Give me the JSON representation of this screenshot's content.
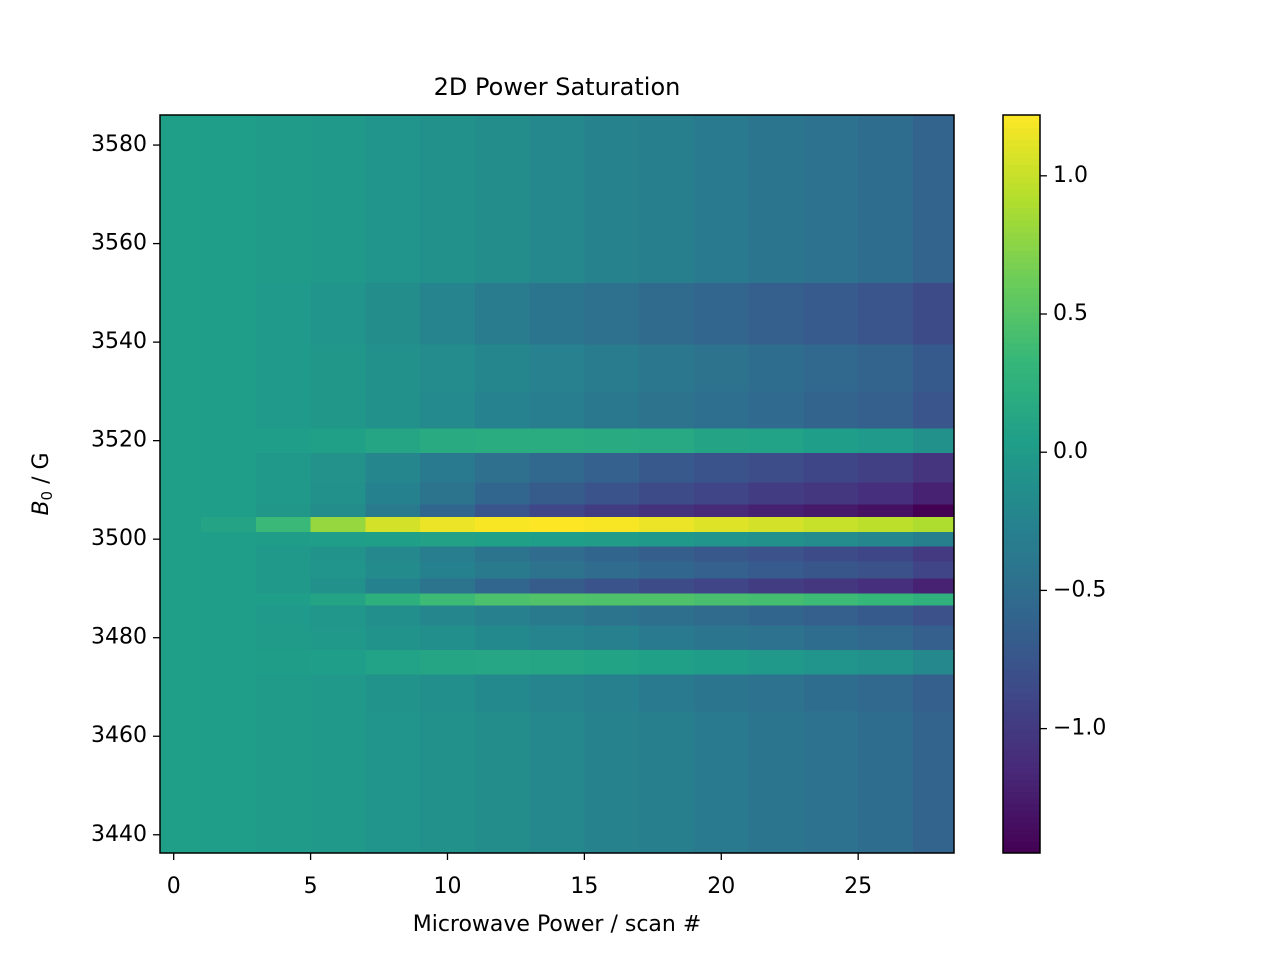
{
  "chart_data": {
    "type": "heatmap",
    "title": "2D Power Saturation",
    "xlabel": "Microwave Power / scan #",
    "ylabel": {
      "symbol": "B",
      "subscript": "0",
      "unit": " / G"
    },
    "colormap": "viridis",
    "x": [
      0,
      2,
      4,
      6,
      8,
      10,
      12,
      14,
      16,
      18,
      20,
      22,
      24,
      26,
      28
    ],
    "y": [
      3580,
      3560,
      3544,
      3535,
      3525,
      3520,
      3515,
      3508,
      3506,
      3503,
      3500,
      3497,
      3494,
      3490,
      3488,
      3485,
      3480,
      3475,
      3470,
      3460,
      3440
    ],
    "z": [
      [
        0.05,
        0.03,
        0.0,
        -0.02,
        -0.06,
        -0.1,
        -0.15,
        -0.2,
        -0.25,
        -0.3,
        -0.35,
        -0.4,
        -0.45,
        -0.5,
        -0.6
      ],
      [
        0.05,
        0.03,
        0.0,
        -0.02,
        -0.06,
        -0.1,
        -0.15,
        -0.2,
        -0.25,
        -0.3,
        -0.35,
        -0.4,
        -0.45,
        -0.5,
        -0.6
      ],
      [
        0.05,
        0.03,
        -0.01,
        -0.06,
        -0.15,
        -0.24,
        -0.33,
        -0.4,
        -0.46,
        -0.53,
        -0.58,
        -0.64,
        -0.69,
        -0.75,
        -0.85
      ],
      [
        0.05,
        0.03,
        -0.01,
        -0.04,
        -0.1,
        -0.16,
        -0.22,
        -0.28,
        -0.34,
        -0.39,
        -0.44,
        -0.5,
        -0.55,
        -0.6,
        -0.7
      ],
      [
        0.05,
        0.03,
        -0.01,
        -0.04,
        -0.11,
        -0.18,
        -0.26,
        -0.32,
        -0.38,
        -0.44,
        -0.49,
        -0.54,
        -0.6,
        -0.65,
        -0.75
      ],
      [
        0.05,
        0.03,
        0.03,
        0.06,
        0.12,
        0.18,
        0.2,
        0.2,
        0.18,
        0.15,
        0.11,
        0.08,
        0.04,
        -0.01,
        -0.1
      ],
      [
        0.05,
        0.03,
        -0.02,
        -0.09,
        -0.22,
        -0.35,
        -0.47,
        -0.56,
        -0.63,
        -0.71,
        -0.76,
        -0.83,
        -0.89,
        -0.94,
        -1.05
      ],
      [
        0.05,
        0.03,
        -0.03,
        -0.11,
        -0.27,
        -0.43,
        -0.57,
        -0.68,
        -0.76,
        -0.84,
        -0.9,
        -0.97,
        -1.03,
        -1.09,
        -1.2
      ],
      [
        0.05,
        0.03,
        -0.04,
        -0.15,
        -0.36,
        -0.57,
        -0.75,
        -0.88,
        -0.97,
        -1.07,
        -1.13,
        -1.21,
        -1.27,
        -1.33,
        -1.45
      ],
      [
        0.05,
        0.1,
        0.35,
        0.8,
        1.05,
        1.15,
        1.2,
        1.22,
        1.2,
        1.15,
        1.1,
        1.05,
        1.0,
        0.95,
        0.9
      ],
      [
        0.05,
        0.03,
        0.02,
        0.03,
        0.05,
        0.07,
        0.06,
        0.04,
        0.01,
        -0.03,
        -0.07,
        -0.11,
        -0.16,
        -0.21,
        -0.3
      ],
      [
        0.05,
        0.03,
        -0.02,
        -0.08,
        -0.2,
        -0.32,
        -0.43,
        -0.52,
        -0.59,
        -0.66,
        -0.72,
        -0.78,
        -0.84,
        -0.89,
        -1.0
      ],
      [
        0.05,
        0.03,
        -0.02,
        -0.07,
        -0.17,
        -0.27,
        -0.36,
        -0.44,
        -0.51,
        -0.57,
        -0.63,
        -0.69,
        -0.74,
        -0.79,
        -0.9
      ],
      [
        0.05,
        0.03,
        -0.03,
        -0.11,
        -0.27,
        -0.43,
        -0.57,
        -0.68,
        -0.76,
        -0.84,
        -0.9,
        -0.97,
        -1.03,
        -1.09,
        -1.2
      ],
      [
        0.05,
        0.03,
        0.04,
        0.11,
        0.24,
        0.37,
        0.45,
        0.48,
        0.47,
        0.47,
        0.43,
        0.41,
        0.37,
        0.33,
        0.25
      ],
      [
        0.05,
        0.03,
        -0.01,
        -0.05,
        -0.13,
        -0.21,
        -0.29,
        -0.36,
        -0.42,
        -0.48,
        -0.53,
        -0.59,
        -0.64,
        -0.7,
        -0.8
      ],
      [
        0.05,
        0.03,
        0.0,
        -0.03,
        -0.08,
        -0.13,
        -0.19,
        -0.24,
        -0.29,
        -0.35,
        -0.4,
        -0.45,
        -0.5,
        -0.55,
        -0.65
      ],
      [
        0.05,
        0.03,
        0.02,
        0.04,
        0.08,
        0.12,
        0.13,
        0.12,
        0.09,
        0.06,
        0.02,
        -0.02,
        -0.06,
        -0.11,
        -0.2
      ],
      [
        0.05,
        0.03,
        0.0,
        -0.03,
        -0.08,
        -0.13,
        -0.19,
        -0.24,
        -0.29,
        -0.35,
        -0.4,
        -0.45,
        -0.5,
        -0.55,
        -0.65
      ],
      [
        0.05,
        0.03,
        0.0,
        -0.02,
        -0.06,
        -0.1,
        -0.15,
        -0.2,
        -0.25,
        -0.3,
        -0.35,
        -0.4,
        -0.45,
        -0.5,
        -0.6
      ],
      [
        0.05,
        0.03,
        0.0,
        -0.02,
        -0.06,
        -0.1,
        -0.15,
        -0.2,
        -0.25,
        -0.3,
        -0.35,
        -0.4,
        -0.45,
        -0.5,
        -0.6
      ]
    ],
    "xlim": [
      -0.5,
      28.5
    ],
    "xticks": [
      0,
      5,
      10,
      15,
      20,
      25
    ],
    "ylim": [
      3436.3,
      3586.1
    ],
    "yticks": [
      3440,
      3460,
      3480,
      3500,
      3520,
      3540,
      3560,
      3580
    ],
    "clim": [
      -1.45,
      1.22
    ],
    "cticks": [
      {
        "value": -1.0,
        "label": "−1.0"
      },
      {
        "value": -0.5,
        "label": "−0.5"
      },
      {
        "value": 0.0,
        "label": "0.0"
      },
      {
        "value": 0.5,
        "label": "0.5"
      },
      {
        "value": 1.0,
        "label": "1.0"
      }
    ]
  }
}
